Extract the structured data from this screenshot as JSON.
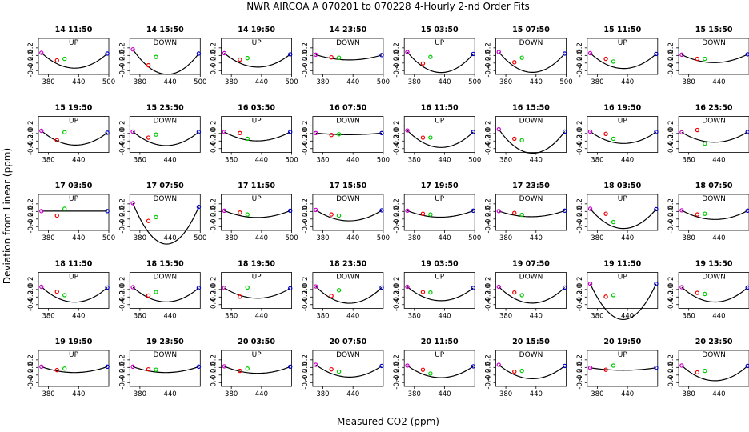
{
  "chart_data": {
    "type": "scatter",
    "title": "NWR   AIRCOA A    070201 to 070228   4-Hourly 2-nd Order Fits",
    "xlabel": "Measured CO2 (ppm)",
    "ylabel": "Deviation from Linear (ppm)",
    "xlim": [
      360,
      500
    ],
    "ylim": [
      -0.5,
      0.45
    ],
    "yticks": [
      "0.2",
      "0.0",
      "-0.2",
      "-0.4"
    ],
    "yticks_values": [
      0.2,
      0.0,
      -0.2,
      -0.4
    ],
    "grid": false,
    "legend": "none",
    "colors": {
      "low": "#cc00cc",
      "s1": "#ee0000",
      "s2": "#00cc00",
      "high": "#0000cc",
      "fit": "#000000"
    },
    "panels": [
      {
        "title": "14 11:50",
        "label": "UP",
        "xticks": [
          "380",
          "440",
          "500"
        ],
        "points": [
          [
            366,
            0.07
          ],
          [
            397,
            -0.13
          ],
          [
            412,
            -0.09
          ],
          [
            497,
            0.05
          ]
        ],
        "curve": 9.2e-05
      },
      {
        "title": "14 15:50",
        "label": "DOWN",
        "xticks": [
          "380",
          "440",
          "500"
        ],
        "points": [
          [
            366,
            0.16
          ],
          [
            397,
            -0.26
          ],
          [
            412,
            -0.04
          ],
          [
            497,
            0.05
          ]
        ],
        "curve": 0.00014
      },
      {
        "title": "14 19:50",
        "label": "UP",
        "xticks": [
          "380",
          "440",
          "500"
        ],
        "points": [
          [
            366,
            0.06
          ],
          [
            397,
            -0.11
          ],
          [
            412,
            -0.07
          ],
          [
            497,
            0.03
          ]
        ],
        "curve": 8.2e-05
      },
      {
        "title": "14 23:50",
        "label": "DOWN",
        "xticks": [
          "380",
          "440",
          "500"
        ],
        "points": [
          [
            366,
            0.02
          ],
          [
            397,
            -0.05
          ],
          [
            412,
            -0.06
          ],
          [
            497,
            0.01
          ]
        ],
        "curve": 3.1e-05
      },
      {
        "title": "15 03:50",
        "label": "UP",
        "xticks": [
          "380",
          "440",
          "500"
        ],
        "points": [
          [
            366,
            0.09
          ],
          [
            397,
            -0.21
          ],
          [
            412,
            -0.04
          ],
          [
            497,
            0.04
          ]
        ],
        "curve": 0.00012
      },
      {
        "title": "15 07:50",
        "label": "DOWN",
        "xticks": [
          "380",
          "440",
          "500"
        ],
        "points": [
          [
            366,
            0.09
          ],
          [
            397,
            -0.18
          ],
          [
            412,
            -0.06
          ],
          [
            497,
            0.05
          ]
        ],
        "curve": 0.00012
      },
      {
        "title": "15 11:50",
        "label": "UP",
        "xticks": [
          "380",
          "440"
        ],
        "points": [
          [
            366,
            0.06
          ],
          [
            397,
            -0.09
          ],
          [
            412,
            -0.16
          ],
          [
            497,
            0.04
          ]
        ],
        "curve": 9.2e-05
      },
      {
        "title": "15 15:50",
        "label": "DOWN",
        "xticks": [
          "380",
          "440"
        ],
        "points": [
          [
            366,
            0.02
          ],
          [
            397,
            -0.09
          ],
          [
            412,
            -0.09
          ],
          [
            497,
            0.03
          ]
        ],
        "curve": 5e-05
      },
      {
        "title": "15 19:50",
        "label": "UP",
        "xticks": [
          "380",
          "440"
        ],
        "points": [
          [
            366,
            0.07
          ],
          [
            397,
            -0.18
          ],
          [
            412,
            0.03
          ],
          [
            497,
            0.02
          ]
        ],
        "curve": 8.2e-05
      },
      {
        "title": "15 23:50",
        "label": "DOWN",
        "xticks": [
          "380",
          "440"
        ],
        "points": [
          [
            366,
            0.05
          ],
          [
            397,
            -0.11
          ],
          [
            412,
            -0.03
          ],
          [
            497,
            0.04
          ]
        ],
        "curve": 8.5e-05
      },
      {
        "title": "16 03:50",
        "label": "UP",
        "xticks": [
          "380",
          "440",
          "500"
        ],
        "points": [
          [
            366,
            0.04
          ],
          [
            397,
            0.01
          ],
          [
            412,
            -0.14
          ],
          [
            497,
            0.04
          ]
        ],
        "curve": 5.5e-05
      },
      {
        "title": "16 07:50",
        "label": "DOWN",
        "xticks": [
          "380",
          "440",
          "500"
        ],
        "points": [
          [
            366,
            0.01
          ],
          [
            397,
            -0.04
          ],
          [
            412,
            -0.02
          ],
          [
            497,
            0.01
          ]
        ],
        "curve": 1e-05
      },
      {
        "title": "16 11:50",
        "label": "UP",
        "xticks": [
          "380",
          "440",
          "500"
        ],
        "points": [
          [
            366,
            0.08
          ],
          [
            397,
            -0.11
          ],
          [
            412,
            -0.11
          ],
          [
            497,
            0.04
          ]
        ],
        "curve": 0.0001
      },
      {
        "title": "16 15:50",
        "label": "DOWN",
        "xticks": [
          "380",
          "440"
        ],
        "points": [
          [
            366,
            0.11
          ],
          [
            397,
            -0.14
          ],
          [
            412,
            -0.18
          ],
          [
            497,
            0.05
          ]
        ],
        "curve": 0.00014
      },
      {
        "title": "16 19:50",
        "label": "UP",
        "xticks": [
          "380",
          "440"
        ],
        "points": [
          [
            366,
            0.05
          ],
          [
            397,
            -0.01
          ],
          [
            412,
            -0.14
          ],
          [
            497,
            0.04
          ]
        ],
        "curve": 7.2e-05
      },
      {
        "title": "16 23:50",
        "label": "DOWN",
        "xticks": [
          "380",
          "440"
        ],
        "points": [
          [
            366,
            0.03
          ],
          [
            397,
            0.09
          ],
          [
            412,
            -0.27
          ],
          [
            497,
            0.04
          ]
        ],
        "curve": 6.2e-05
      },
      {
        "title": "17 03:50",
        "label": "UP",
        "xticks": [
          "380",
          "440",
          "500"
        ],
        "points": [
          [
            366,
            0.01
          ],
          [
            397,
            -0.11
          ],
          [
            412,
            0.07
          ],
          [
            497,
            0.01
          ]
        ],
        "curve": 0.0
      },
      {
        "title": "17 07:50",
        "label": "DOWN",
        "xticks": [
          "380",
          "440",
          "500"
        ],
        "points": [
          [
            366,
            0.22
          ],
          [
            397,
            -0.25
          ],
          [
            412,
            -0.15
          ],
          [
            497,
            0.12
          ]
        ],
        "curve": 0.00024
      },
      {
        "title": "17 11:50",
        "label": "UP",
        "xticks": [
          "380",
          "440",
          "500"
        ],
        "points": [
          [
            366,
            0.02
          ],
          [
            397,
            -0.03
          ],
          [
            412,
            -0.08
          ],
          [
            497,
            0.02
          ]
        ],
        "curve": 4.2e-05
      },
      {
        "title": "17 15:50",
        "label": "DOWN",
        "xticks": [
          "380",
          "440",
          "500"
        ],
        "points": [
          [
            366,
            0.04
          ],
          [
            397,
            -0.08
          ],
          [
            412,
            -0.11
          ],
          [
            497,
            0.03
          ]
        ],
        "curve": 6.6e-05
      },
      {
        "title": "17 19:50",
        "label": "UP",
        "xticks": [
          "380",
          "440",
          "500"
        ],
        "points": [
          [
            366,
            0.02
          ],
          [
            397,
            -0.06
          ],
          [
            412,
            -0.08
          ],
          [
            497,
            0.02
          ]
        ],
        "curve": 4e-05
      },
      {
        "title": "17 23:50",
        "label": "DOWN",
        "xticks": [
          "380",
          "440"
        ],
        "points": [
          [
            366,
            0.01
          ],
          [
            397,
            -0.04
          ],
          [
            412,
            -0.09
          ],
          [
            497,
            0.02
          ]
        ],
        "curve": 3.6e-05
      },
      {
        "title": "18 03:50",
        "label": "UP",
        "xticks": [
          "380",
          "440"
        ],
        "points": [
          [
            366,
            0.07
          ],
          [
            397,
            -0.06
          ],
          [
            412,
            -0.28
          ],
          [
            497,
            0.06
          ]
        ],
        "curve": 0.00012
      },
      {
        "title": "18 07:50",
        "label": "DOWN",
        "xticks": [
          "380",
          "440"
        ],
        "points": [
          [
            366,
            0.03
          ],
          [
            397,
            -0.08
          ],
          [
            412,
            -0.06
          ],
          [
            497,
            0.02
          ]
        ],
        "curve": 5.5e-05
      },
      {
        "title": "18 11:50",
        "label": "UP",
        "xticks": [
          "380",
          "440"
        ],
        "points": [
          [
            366,
            0.07
          ],
          [
            397,
            -0.06
          ],
          [
            412,
            -0.15
          ],
          [
            497,
            0.05
          ]
        ],
        "curve": 9.2e-05
      },
      {
        "title": "18 15:50",
        "label": "DOWN",
        "xticks": [
          "380",
          "440"
        ],
        "points": [
          [
            366,
            0.06
          ],
          [
            397,
            -0.16
          ],
          [
            412,
            -0.07
          ],
          [
            497,
            0.04
          ]
        ],
        "curve": 8.8e-05
      },
      {
        "title": "18 19:50",
        "label": "UP",
        "xticks": [
          "380",
          "440"
        ],
        "points": [
          [
            366,
            0.04
          ],
          [
            397,
            -0.19
          ],
          [
            412,
            0.05
          ],
          [
            497,
            0.03
          ]
        ],
        "curve": 6.2e-05
      },
      {
        "title": "18 23:50",
        "label": "DOWN",
        "xticks": [
          "380",
          "440"
        ],
        "points": [
          [
            366,
            0.08
          ],
          [
            397,
            -0.17
          ],
          [
            412,
            -0.02
          ],
          [
            497,
            0.05
          ]
        ],
        "curve": 0.0001
      },
      {
        "title": "19 03:50",
        "label": "UP",
        "xticks": [
          "380",
          "440"
        ],
        "points": [
          [
            366,
            0.07
          ],
          [
            397,
            -0.07
          ],
          [
            412,
            -0.08
          ],
          [
            497,
            0.04
          ]
        ],
        "curve": 8.2e-05
      },
      {
        "title": "19 07:50",
        "label": "DOWN",
        "xticks": [
          "380",
          "440"
        ],
        "points": [
          [
            366,
            0.07
          ],
          [
            397,
            -0.08
          ],
          [
            412,
            -0.15
          ],
          [
            497,
            0.05
          ]
        ],
        "curve": 9.8e-05
      },
      {
        "title": "19 11:50",
        "label": "UP",
        "xticks": [
          "380",
          "440"
        ],
        "points": [
          [
            366,
            0.15
          ],
          [
            397,
            -0.19
          ],
          [
            412,
            -0.15
          ],
          [
            497,
            0.15
          ]
        ],
        "curve": 0.00022
      },
      {
        "title": "19 15:50",
        "label": "DOWN",
        "xticks": [
          "380",
          "440"
        ],
        "points": [
          [
            366,
            0.06
          ],
          [
            397,
            -0.09
          ],
          [
            412,
            -0.12
          ],
          [
            497,
            0.05
          ]
        ],
        "curve": 9e-05
      },
      {
        "title": "19 19:50",
        "label": "UP",
        "xticks": [
          "380",
          "440"
        ],
        "points": [
          [
            366,
            0.02
          ],
          [
            397,
            -0.07
          ],
          [
            412,
            -0.03
          ],
          [
            497,
            0.02
          ]
        ],
        "curve": 3.6e-05
      },
      {
        "title": "19 23:50",
        "label": "DOWN",
        "xticks": [
          "380",
          "440"
        ],
        "points": [
          [
            366,
            0.02
          ],
          [
            397,
            -0.05
          ],
          [
            412,
            -0.06
          ],
          [
            497,
            0.02
          ]
        ],
        "curve": 3.6e-05
      },
      {
        "title": "20 03:50",
        "label": "UP",
        "xticks": [
          "380",
          "440"
        ],
        "points": [
          [
            366,
            0.03
          ],
          [
            397,
            -0.09
          ],
          [
            412,
            -0.03
          ],
          [
            497,
            0.02
          ]
        ],
        "curve": 4.2e-05
      },
      {
        "title": "20 07:50",
        "label": "DOWN",
        "xticks": [
          "380",
          "440"
        ],
        "points": [
          [
            366,
            0.07
          ],
          [
            397,
            -0.05
          ],
          [
            412,
            -0.11
          ],
          [
            497,
            0.04
          ]
        ],
        "curve": 7.2e-05
      },
      {
        "title": "20 11:50",
        "label": "UP",
        "xticks": [
          "380",
          "440"
        ],
        "points": [
          [
            366,
            0.05
          ],
          [
            397,
            -0.06
          ],
          [
            412,
            -0.16
          ],
          [
            497,
            0.03
          ]
        ],
        "curve": 7.2e-05
      },
      {
        "title": "20 15:50",
        "label": "DOWN",
        "xticks": [
          "380",
          "440"
        ],
        "points": [
          [
            366,
            0.07
          ],
          [
            397,
            -0.11
          ],
          [
            412,
            -0.09
          ],
          [
            497,
            0.04
          ]
        ],
        "curve": 8.2e-05
      },
      {
        "title": "20 19:50",
        "label": "UP",
        "xticks": [
          "380",
          "440"
        ],
        "points": [
          [
            366,
            -0.01
          ],
          [
            397,
            -0.06
          ],
          [
            412,
            0.05
          ],
          [
            497,
            -0.01
          ]
        ],
        "curve": 1.5e-05
      },
      {
        "title": "20 23:50",
        "label": "DOWN",
        "xticks": [
          "380",
          "440"
        ],
        "points": [
          [
            366,
            0.05
          ],
          [
            397,
            -0.13
          ],
          [
            412,
            -0.09
          ],
          [
            497,
            0.04
          ]
        ],
        "curve": 9.2e-05
      }
    ]
  }
}
